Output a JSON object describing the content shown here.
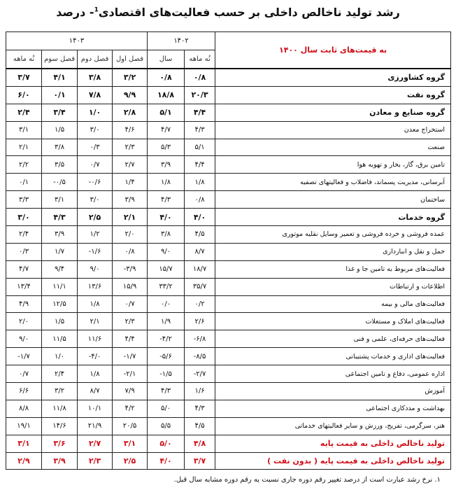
{
  "title": {
    "main": "رشد تولید ناخالص داخلی بر حسب فعالیت‌های اقتصادی",
    "sup": "1",
    "suffix": "- درصد"
  },
  "header": {
    "corner": "به قیمت‌های ثابت سال ۱۴۰۰",
    "year_1402": "۱۴۰۲",
    "year_1403": "۱۴۰۳",
    "columns": [
      "نُه ماهه",
      "سال",
      "فصل اول",
      "فصل دوم",
      "فصل سوم",
      "نُه ماهه"
    ]
  },
  "rows": [
    {
      "label": "گروه کشاورزی",
      "style": "bold",
      "values": [
        "۰/۸",
        "۰/۸",
        "۳/۲",
        "۳/۸",
        "۴/۱",
        "۳/۷"
      ]
    },
    {
      "label": "گروه نفت",
      "style": "bold",
      "values": [
        "۲۰/۳",
        "۱۸/۸",
        "۹/۹",
        "۷/۸",
        "۰/۱",
        "۶/۰"
      ]
    },
    {
      "label": "گروه صنایع و معادن",
      "style": "bold",
      "values": [
        "۴/۴",
        "۵/۱",
        "۲/۸",
        "۱/۰",
        "۳/۴",
        "۲/۴"
      ]
    },
    {
      "label": "استخراج معدن",
      "style": "",
      "values": [
        "۴/۳",
        "۴/۷",
        "۴/۶",
        "۳/۰",
        "۱/۵",
        "۳/۱"
      ]
    },
    {
      "label": "صنعت",
      "style": "",
      "values": [
        "۵/۱",
        "۵/۳",
        "۲/۳",
        "۰/۳",
        "۳/۸",
        "۲/۱"
      ]
    },
    {
      "label": "تامین برق، گاز، بخار و تهویه هوا",
      "style": "",
      "values": [
        "۴/۴",
        "۳/۹",
        "۲/۷",
        "۰/۷",
        "۳/۵",
        "۲/۲"
      ]
    },
    {
      "label": "آبرسانی، مدیریت پسماند، فاضلاب و فعالیتهای تصفیه",
      "style": "",
      "values": [
        "۱/۸",
        "۱/۸",
        "۱/۴",
        "-۰/۶",
        "-۰/۵",
        "۰/۱"
      ]
    },
    {
      "label": "ساختمان",
      "style": "",
      "values": [
        "۰/۸",
        "۴/۳",
        "۳/۹",
        "۳/۰",
        "۳/۱",
        "۳/۳"
      ]
    },
    {
      "label": "گروه خدمات",
      "style": "bold",
      "values": [
        "۴/۰",
        "۴/۰",
        "۲/۱",
        "۲/۵",
        "۴/۳",
        "۳/۰"
      ]
    },
    {
      "label": "عمده فروشی و خرده فروشی و تعمیر وسایل نقلیه موتوری",
      "style": "",
      "values": [
        "۴/۵",
        "۳/۸",
        "۲/۰",
        "۱/۲",
        "۳/۹",
        "۲/۴"
      ]
    },
    {
      "label": "حمل و نقل و انبارداری",
      "style": "",
      "values": [
        "۸/۷",
        "۹/۰",
        "۰/۸",
        "-۱/۶",
        "۱/۷",
        "۰/۳"
      ]
    },
    {
      "label": "فعالیت‌های مربوط به تامین جا و غذا",
      "style": "",
      "values": [
        "۱۸/۷",
        "۱۵/۷",
        "-۳/۹",
        "۹/۰",
        "۹/۴",
        "۴/۷"
      ]
    },
    {
      "label": "اطلاعات و ارتباطات",
      "style": "",
      "values": [
        "۳۵/۷",
        "۳۳/۲",
        "۱۵/۹",
        "۱۳/۶",
        "۱۱/۱",
        "۱۳/۴"
      ]
    },
    {
      "label": "فعالیت‌های مالی و بیمه",
      "style": "",
      "values": [
        "۰/۲",
        "۰/۰",
        "۰/۷",
        "۱/۸",
        "۱۲/۵",
        "۴/۹"
      ]
    },
    {
      "label": "فعالیت‌های املاک و مستغلات",
      "style": "",
      "values": [
        "۲/۶",
        "۱/۹",
        "۲/۳",
        "۲/۱",
        "۱/۵",
        "۲/۰"
      ]
    },
    {
      "label": "فعالیت‌های حرفه‌ای، علمی و فنی",
      "style": "",
      "values": [
        "-۶/۸",
        "-۴/۲",
        "۴/۴",
        "۱۱/۶",
        "۱۱/۵",
        "۹/۰"
      ]
    },
    {
      "label": "فعالیت‌های اداری و خدمات پشتیبانی",
      "style": "",
      "values": [
        "-۸/۵",
        "-۵/۶",
        "-۱/۷",
        "-۴/۰",
        "۱/۰",
        "-۱/۷"
      ]
    },
    {
      "label": "اداره عمومی، دفاع و تامین اجتماعی",
      "style": "",
      "values": [
        "-۲/۷",
        "-۱/۵",
        "-۲/۱",
        "۱/۸",
        "۲/۴",
        "۰/۷"
      ]
    },
    {
      "label": "آموزش",
      "style": "",
      "values": [
        "۱/۶",
        "۴/۳",
        "۷/۹",
        "۸/۷",
        "۳/۲",
        "۶/۶"
      ]
    },
    {
      "label": "بهداشت و مددکاری اجتماعی",
      "style": "",
      "values": [
        "۴/۳",
        "۵/۰",
        "۴/۲",
        "۱۰/۱",
        "۱۱/۸",
        "۸/۸"
      ]
    },
    {
      "label": "هنر، سرگرمی، تفریح، ورزش و سایر فعالیتهای خدماتی",
      "style": "",
      "values": [
        "۴/۵",
        "۵/۵",
        "۲۰/۵",
        "۲۱/۹",
        "۱۴/۶",
        "۱۹/۱"
      ]
    },
    {
      "label": "تولید ناخالص داخلی به قیمت پایه",
      "style": "red",
      "values": [
        "۴/۸",
        "۵/۰",
        "۳/۱",
        "۲/۷",
        "۳/۶",
        "۳/۱"
      ]
    },
    {
      "label": "تولید ناخالص داخلی به قیمت پایه ( بدون نفت )",
      "style": "red",
      "values": [
        "۳/۷",
        "۴/۰",
        "۲/۵",
        "۲/۳",
        "۳/۹",
        "۲/۹"
      ]
    }
  ],
  "footnote": "۱. نرخ رشد عبارت است از درصد تغییر رقم دوره جاری نسبت به رقم دوره مشابه سال قبل.",
  "colors": {
    "accent_red": "#d0101a",
    "border": "#222222"
  }
}
